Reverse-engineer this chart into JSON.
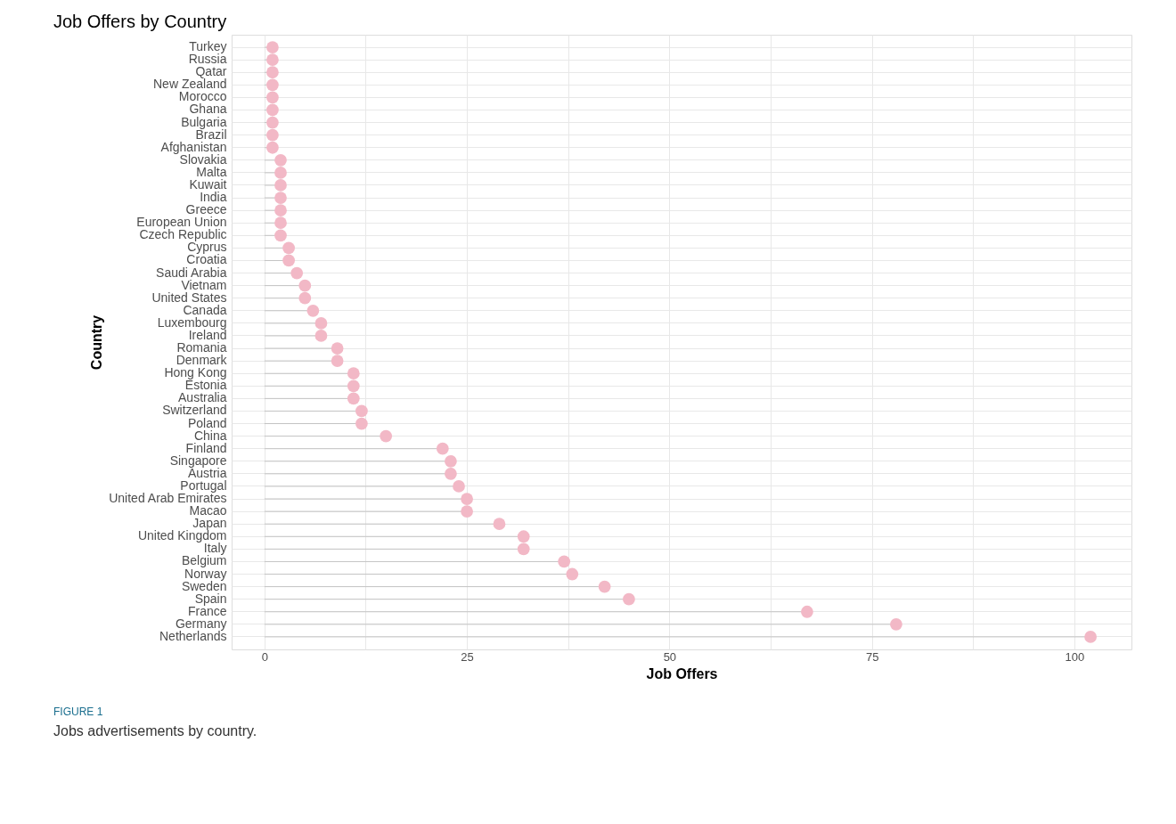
{
  "chart_data": {
    "type": "lollipop",
    "title": "Job Offers by Country",
    "xlabel": "Job Offers",
    "ylabel": "Country",
    "orientation": "horizontal",
    "categories": [
      "Turkey",
      "Russia",
      "Qatar",
      "New Zealand",
      "Morocco",
      "Ghana",
      "Bulgaria",
      "Brazil",
      "Afghanistan",
      "Slovakia",
      "Malta",
      "Kuwait",
      "India",
      "Greece",
      "European Union",
      "Czech Republic",
      "Cyprus",
      "Croatia",
      "Saudi Arabia",
      "Vietnam",
      "United States",
      "Canada",
      "Luxembourg",
      "Ireland",
      "Romania",
      "Denmark",
      "Hong Kong",
      "Estonia",
      "Australia",
      "Switzerland",
      "Poland",
      "China",
      "Finland",
      "Singapore",
      "Austria",
      "Portugal",
      "United Arab Emirates",
      "Macao",
      "Japan",
      "United Kingdom",
      "Italy",
      "Belgium",
      "Norway",
      "Sweden",
      "Spain",
      "France",
      "Germany",
      "Netherlands"
    ],
    "values": [
      1,
      1,
      1,
      1,
      1,
      1,
      1,
      1,
      1,
      2,
      2,
      2,
      2,
      2,
      2,
      2,
      3,
      3,
      4,
      5,
      5,
      6,
      7,
      7,
      9,
      9,
      11,
      11,
      11,
      12,
      12,
      15,
      22,
      23,
      23,
      24,
      25,
      25,
      29,
      32,
      32,
      37,
      38,
      42,
      45,
      67,
      78,
      102
    ],
    "color": "#f2b8c6",
    "xlim": [
      -4.05,
      107.05
    ],
    "xticks": [
      0,
      {
        "value": 12.5,
        "label": null
      },
      25,
      {
        "value": 37.5,
        "label": null
      },
      50,
      {
        "value": 62.5,
        "label": null
      },
      75,
      {
        "value": 87.5,
        "label": null
      },
      100
    ],
    "grid": true,
    "annotations": [
      "FIGURE 1",
      "Jobs advertisements by country."
    ]
  }
}
